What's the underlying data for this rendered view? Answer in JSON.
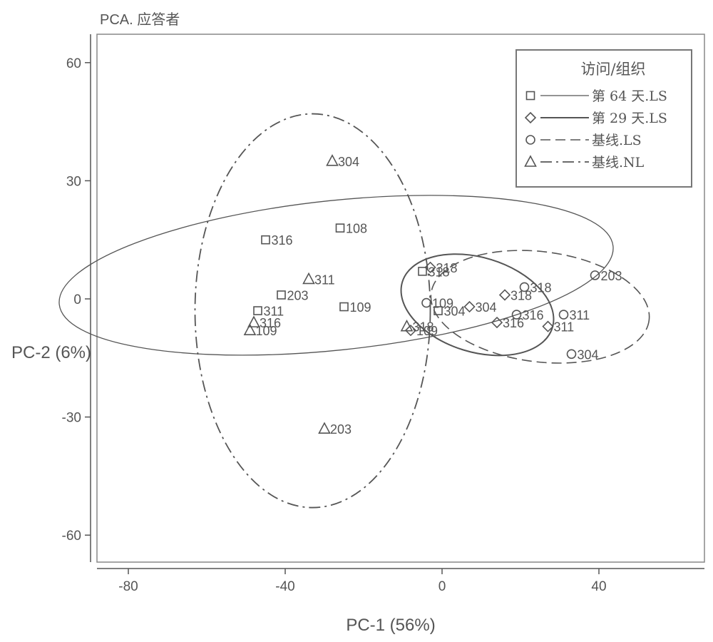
{
  "chart_data": {
    "type": "scatter",
    "title": "PCA. 应答者",
    "xlabel": "PC-1 (56%)",
    "ylabel": "PC-2 (6%)",
    "xlim": [
      -86,
      66
    ],
    "ylim": [
      -64,
      66
    ],
    "xticks": [
      -80,
      -40,
      0,
      40
    ],
    "yticks": [
      60,
      30,
      0,
      -30,
      -60
    ],
    "grid": false,
    "legend": {
      "title": "访问/组织",
      "position": "top-right"
    },
    "series": [
      {
        "name": "第 64 天.LS",
        "marker": "square",
        "line": "solid-thin",
        "points": [
          {
            "x": -26,
            "y": 18,
            "label": "108"
          },
          {
            "x": -45,
            "y": 15,
            "label": "316"
          },
          {
            "x": -41,
            "y": 1,
            "label": "203"
          },
          {
            "x": -47,
            "y": -3,
            "label": "311"
          },
          {
            "x": -25,
            "y": -2,
            "label": "109"
          },
          {
            "x": -1,
            "y": -3,
            "label": "304"
          },
          {
            "x": -5,
            "y": 7,
            "label": "318"
          }
        ],
        "ellipse": {
          "cx": -27,
          "cy": 6,
          "rx": 71,
          "ry": 19,
          "rotation_deg": 6
        }
      },
      {
        "name": "第 29 天.LS",
        "marker": "diamond",
        "line": "solid",
        "points": [
          {
            "x": -3,
            "y": 8,
            "label": "318"
          },
          {
            "x": 16,
            "y": 1,
            "label": "318"
          },
          {
            "x": 7,
            "y": -2,
            "label": "304"
          },
          {
            "x": 14,
            "y": -6,
            "label": "316"
          },
          {
            "x": 27,
            "y": -7,
            "label": "311"
          },
          {
            "x": -8,
            "y": -8,
            "label": "109"
          }
        ],
        "ellipse": {
          "cx": 9,
          "cy": -1.5,
          "rx": 20,
          "ry": 12,
          "rotation_deg": -17
        }
      },
      {
        "name": "基线.LS",
        "marker": "circle",
        "line": "dashed",
        "points": [
          {
            "x": 39,
            "y": 6,
            "label": "203"
          },
          {
            "x": 21,
            "y": 3,
            "label": "318"
          },
          {
            "x": -4,
            "y": -1,
            "label": "109"
          },
          {
            "x": 19,
            "y": -4,
            "label": "316"
          },
          {
            "x": 31,
            "y": -4,
            "label": "311"
          },
          {
            "x": 33,
            "y": -14,
            "label": "304"
          }
        ],
        "ellipse": {
          "cx": 25,
          "cy": -2,
          "rx": 28,
          "ry": 14,
          "rotation_deg": -7
        }
      },
      {
        "name": "基线.NL",
        "marker": "triangle",
        "line": "dash-dot",
        "points": [
          {
            "x": -28,
            "y": 35,
            "label": "304"
          },
          {
            "x": -34,
            "y": 5,
            "label": "311"
          },
          {
            "x": -48,
            "y": -6,
            "label": "316"
          },
          {
            "x": -49,
            "y": -8,
            "label": "109"
          },
          {
            "x": -9,
            "y": -7,
            "label": "318"
          },
          {
            "x": -30,
            "y": -33,
            "label": "203"
          }
        ],
        "ellipse": {
          "cx": -33,
          "cy": -3,
          "rx": 30,
          "ry": 50,
          "rotation_deg": 0
        }
      }
    ]
  }
}
